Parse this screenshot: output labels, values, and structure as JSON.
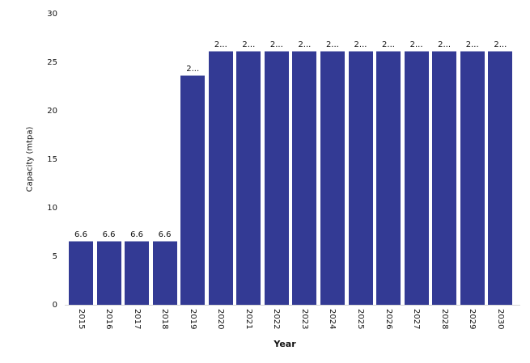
{
  "chart_data": {
    "type": "bar",
    "title": "",
    "xlabel": "Year",
    "ylabel": "Capacity (mtpa)",
    "ylim": [
      0,
      30
    ],
    "yticks": [
      0,
      5,
      10,
      15,
      20,
      25,
      30
    ],
    "grid": false,
    "legend": null,
    "categories": [
      "2015",
      "2016",
      "2017",
      "2018",
      "2019",
      "2020",
      "2021",
      "2022",
      "2023",
      "2024",
      "2025",
      "2026",
      "2027",
      "2028",
      "2029",
      "2030"
    ],
    "values": [
      6.6,
      6.6,
      6.6,
      6.6,
      23.7,
      26.2,
      26.2,
      26.2,
      26.2,
      26.2,
      26.2,
      26.2,
      26.2,
      26.2,
      26.2,
      26.2
    ],
    "bar_labels": [
      "6.6",
      "6.6",
      "6.6",
      "6.6",
      "2...",
      "2...",
      "2...",
      "2...",
      "2...",
      "2...",
      "2...",
      "2...",
      "2...",
      "2...",
      "2...",
      "2..."
    ],
    "colors": {
      "bar_fill": "#333A94",
      "bar_top_edge": "#9CA1CB",
      "axis_line": "#D6D6D6",
      "text": "#111111",
      "background": "#FFFFFF"
    }
  }
}
